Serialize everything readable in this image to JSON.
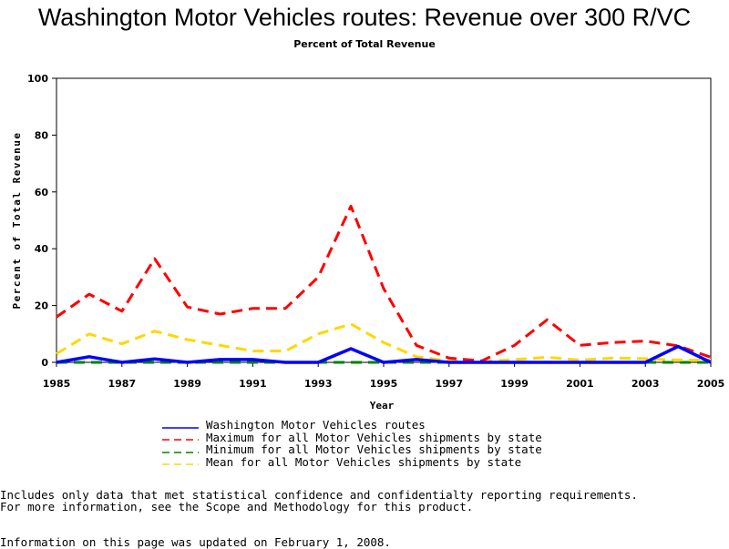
{
  "title": "Washington Motor Vehicles routes: Revenue over 300 R/VC",
  "subtitle": "Percent of Total Revenue",
  "chart_data": {
    "type": "line",
    "xlabel": "Year",
    "ylabel": "Percent of Total Revenue",
    "xlim": [
      1985,
      2005
    ],
    "ylim": [
      0,
      100
    ],
    "x_ticks": [
      "1985",
      "1987",
      "1989",
      "1991",
      "1993",
      "1995",
      "1997",
      "1999",
      "2001",
      "2003",
      "2005"
    ],
    "y_ticks": [
      "0",
      "20",
      "40",
      "60",
      "80",
      "100"
    ],
    "grid": false,
    "legend_position": "bottom",
    "x": [
      1985,
      1986,
      1987,
      1988,
      1989,
      1990,
      1991,
      1992,
      1993,
      1994,
      1995,
      1996,
      1997,
      1998,
      1999,
      2000,
      2001,
      2002,
      2003,
      2004,
      2005
    ],
    "series": [
      {
        "name": "Washington Motor Vehicles routes",
        "color": "#0000ff",
        "dash": "solid",
        "values": [
          0,
          2,
          0,
          1.2,
          0,
          1,
          1,
          0,
          0,
          4.8,
          0,
          1,
          0,
          0,
          0,
          0,
          0,
          0,
          0,
          5.6,
          0
        ]
      },
      {
        "name": "Maximum for all Motor Vehicles shipments by state",
        "color": "#ff0000",
        "dash": "dashed",
        "values": [
          16,
          24,
          18,
          36.5,
          19.5,
          17,
          19,
          19,
          30,
          55,
          26,
          6,
          1.5,
          0.5,
          6,
          15,
          6,
          7,
          7.5,
          5.8,
          1.8
        ]
      },
      {
        "name": "Minimum for all Motor Vehicles shipments by state",
        "color": "#008000",
        "dash": "dashed",
        "values": [
          0,
          0,
          0,
          0,
          0,
          0,
          0,
          0,
          0,
          0,
          0,
          0,
          0,
          0,
          0,
          0,
          0,
          0,
          0,
          0,
          0
        ]
      },
      {
        "name": "Mean for all Motor Vehicles shipments by state",
        "color": "#ffd700",
        "dash": "dashed",
        "values": [
          3,
          10,
          6.5,
          11,
          8,
          6,
          4,
          4,
          10,
          13.5,
          7,
          2,
          0.5,
          0.3,
          1,
          1.8,
          0.8,
          1.5,
          1.3,
          0.8,
          0.8
        ]
      }
    ]
  },
  "footnote_lines": [
    "Includes only data that met statistical confidence and confidentialty reporting requirements.",
    "For more information, see the Scope and Methodology for this product."
  ],
  "updated_text": "Information on this page was updated on February 1, 2008."
}
